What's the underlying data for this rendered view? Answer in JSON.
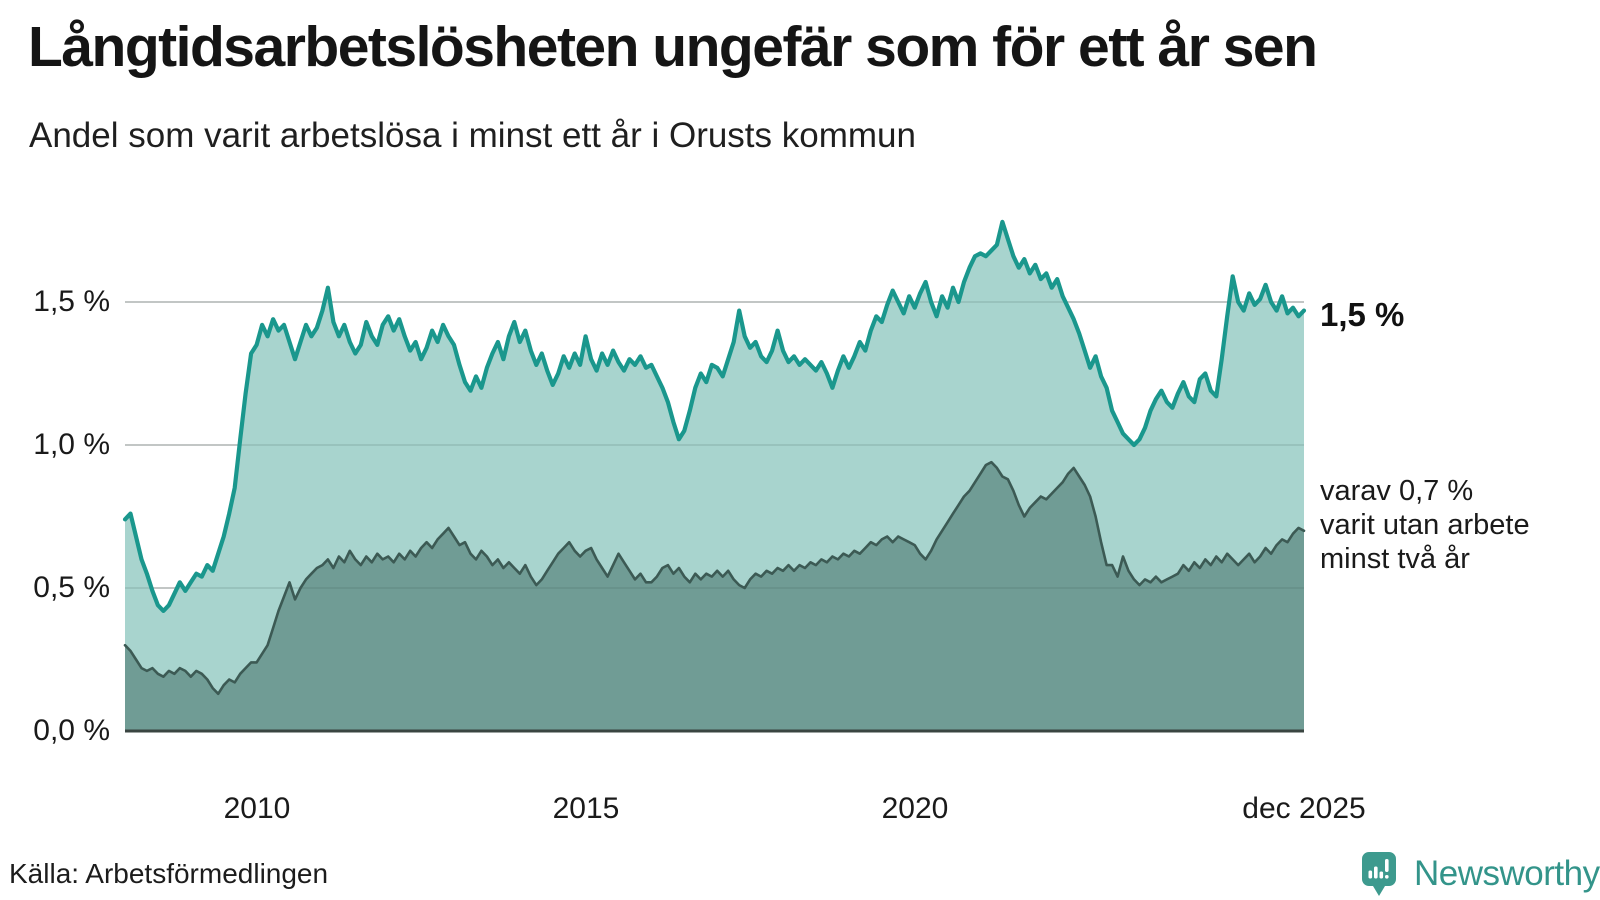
{
  "header": {
    "title": "Långtidsarbetslösheten ungefär som för ett år sen",
    "subtitle": "Andel som varit arbetslösa i minst ett år i Orusts kommun"
  },
  "chart_data": {
    "type": "area",
    "unit": "%",
    "frequency": "monthly",
    "x_start": "2008-01",
    "x_end": "2025-12",
    "ylim": [
      0,
      1.8
    ],
    "grid": "horizontal",
    "colors": {
      "line_primary": "#1a978d",
      "fill_primary": "#a8d4ce",
      "line_secondary": "#3c5a54",
      "fill_secondary": "#709c95",
      "gridline": "#d9d9d9",
      "baseline": "#3a4541"
    },
    "yticks": [
      {
        "value": 1.5,
        "label": "1,5 %"
      },
      {
        "value": 1.0,
        "label": "1,0 %"
      },
      {
        "value": 0.5,
        "label": "0,5 %"
      },
      {
        "value": 0.0,
        "label": "0,0 %"
      }
    ],
    "xticks": [
      {
        "label": "2010",
        "month_index": 24
      },
      {
        "label": "2015",
        "month_index": 84
      },
      {
        "label": "2020",
        "month_index": 144
      },
      {
        "label": "dec 2025",
        "month_index": 215
      }
    ],
    "series": [
      {
        "name": "Andel arbetslösa minst ett år",
        "values": [
          0.74,
          0.76,
          0.68,
          0.6,
          0.55,
          0.49,
          0.44,
          0.42,
          0.44,
          0.48,
          0.52,
          0.49,
          0.52,
          0.55,
          0.54,
          0.58,
          0.56,
          0.62,
          0.68,
          0.76,
          0.85,
          1.02,
          1.18,
          1.32,
          1.35,
          1.42,
          1.38,
          1.44,
          1.4,
          1.42,
          1.36,
          1.3,
          1.36,
          1.42,
          1.38,
          1.41,
          1.47,
          1.55,
          1.43,
          1.38,
          1.42,
          1.36,
          1.32,
          1.35,
          1.43,
          1.38,
          1.35,
          1.42,
          1.45,
          1.4,
          1.44,
          1.38,
          1.33,
          1.36,
          1.3,
          1.34,
          1.4,
          1.36,
          1.42,
          1.38,
          1.35,
          1.28,
          1.22,
          1.19,
          1.24,
          1.2,
          1.27,
          1.32,
          1.36,
          1.3,
          1.38,
          1.43,
          1.36,
          1.4,
          1.33,
          1.28,
          1.32,
          1.26,
          1.21,
          1.25,
          1.31,
          1.27,
          1.32,
          1.28,
          1.38,
          1.3,
          1.26,
          1.32,
          1.28,
          1.33,
          1.29,
          1.26,
          1.3,
          1.28,
          1.31,
          1.27,
          1.28,
          1.24,
          1.2,
          1.15,
          1.08,
          1.02,
          1.05,
          1.12,
          1.2,
          1.25,
          1.22,
          1.28,
          1.27,
          1.24,
          1.3,
          1.36,
          1.47,
          1.38,
          1.34,
          1.36,
          1.31,
          1.29,
          1.33,
          1.4,
          1.33,
          1.29,
          1.31,
          1.28,
          1.3,
          1.28,
          1.26,
          1.29,
          1.25,
          1.2,
          1.26,
          1.31,
          1.27,
          1.31,
          1.36,
          1.33,
          1.4,
          1.45,
          1.43,
          1.49,
          1.54,
          1.5,
          1.46,
          1.52,
          1.48,
          1.53,
          1.57,
          1.5,
          1.45,
          1.52,
          1.48,
          1.55,
          1.5,
          1.57,
          1.62,
          1.66,
          1.67,
          1.66,
          1.68,
          1.7,
          1.78,
          1.72,
          1.66,
          1.62,
          1.65,
          1.6,
          1.63,
          1.58,
          1.6,
          1.55,
          1.58,
          1.52,
          1.48,
          1.44,
          1.39,
          1.33,
          1.27,
          1.31,
          1.24,
          1.2,
          1.12,
          1.08,
          1.04,
          1.02,
          1.0,
          1.02,
          1.06,
          1.12,
          1.16,
          1.19,
          1.15,
          1.13,
          1.18,
          1.22,
          1.17,
          1.15,
          1.23,
          1.25,
          1.19,
          1.17,
          1.3,
          1.45,
          1.59,
          1.5,
          1.47,
          1.53,
          1.49,
          1.51,
          1.56,
          1.5,
          1.47,
          1.52,
          1.46,
          1.48,
          1.45,
          1.47
        ]
      },
      {
        "name": "Andel arbetslösa minst två år",
        "values": [
          0.3,
          0.28,
          0.25,
          0.22,
          0.21,
          0.22,
          0.2,
          0.19,
          0.21,
          0.2,
          0.22,
          0.21,
          0.19,
          0.21,
          0.2,
          0.18,
          0.15,
          0.13,
          0.16,
          0.18,
          0.17,
          0.2,
          0.22,
          0.24,
          0.24,
          0.27,
          0.3,
          0.36,
          0.42,
          0.47,
          0.52,
          0.46,
          0.5,
          0.53,
          0.55,
          0.57,
          0.58,
          0.6,
          0.57,
          0.61,
          0.59,
          0.63,
          0.6,
          0.58,
          0.61,
          0.59,
          0.62,
          0.6,
          0.61,
          0.59,
          0.62,
          0.6,
          0.63,
          0.61,
          0.64,
          0.66,
          0.64,
          0.67,
          0.69,
          0.71,
          0.68,
          0.65,
          0.66,
          0.62,
          0.6,
          0.63,
          0.61,
          0.58,
          0.6,
          0.57,
          0.59,
          0.57,
          0.55,
          0.58,
          0.54,
          0.51,
          0.53,
          0.56,
          0.59,
          0.62,
          0.64,
          0.66,
          0.63,
          0.61,
          0.63,
          0.64,
          0.6,
          0.57,
          0.54,
          0.58,
          0.62,
          0.59,
          0.56,
          0.53,
          0.55,
          0.52,
          0.52,
          0.54,
          0.57,
          0.58,
          0.55,
          0.57,
          0.54,
          0.52,
          0.55,
          0.53,
          0.55,
          0.54,
          0.56,
          0.54,
          0.56,
          0.53,
          0.51,
          0.5,
          0.53,
          0.55,
          0.54,
          0.56,
          0.55,
          0.57,
          0.56,
          0.58,
          0.56,
          0.58,
          0.57,
          0.59,
          0.58,
          0.6,
          0.59,
          0.61,
          0.6,
          0.62,
          0.61,
          0.63,
          0.62,
          0.64,
          0.66,
          0.65,
          0.67,
          0.68,
          0.66,
          0.68,
          0.67,
          0.66,
          0.65,
          0.62,
          0.6,
          0.63,
          0.67,
          0.7,
          0.73,
          0.76,
          0.79,
          0.82,
          0.84,
          0.87,
          0.9,
          0.93,
          0.94,
          0.92,
          0.89,
          0.88,
          0.84,
          0.79,
          0.75,
          0.78,
          0.8,
          0.82,
          0.81,
          0.83,
          0.85,
          0.87,
          0.9,
          0.92,
          0.89,
          0.86,
          0.82,
          0.75,
          0.66,
          0.58,
          0.58,
          0.54,
          0.61,
          0.56,
          0.53,
          0.51,
          0.53,
          0.52,
          0.54,
          0.52,
          0.53,
          0.54,
          0.55,
          0.58,
          0.56,
          0.59,
          0.57,
          0.6,
          0.58,
          0.61,
          0.59,
          0.62,
          0.6,
          0.58,
          0.6,
          0.62,
          0.59,
          0.61,
          0.64,
          0.62,
          0.65,
          0.67,
          0.66,
          0.69,
          0.71,
          0.7
        ]
      }
    ],
    "annotations": {
      "last_value_label": "1,5 %",
      "secondary_label_lines": [
        "varav 0,7 %",
        "varit utan arbete",
        "minst två år"
      ]
    }
  },
  "footer": {
    "source": "Källa: Arbetsförmedlingen",
    "brand": "Newsworthy"
  }
}
